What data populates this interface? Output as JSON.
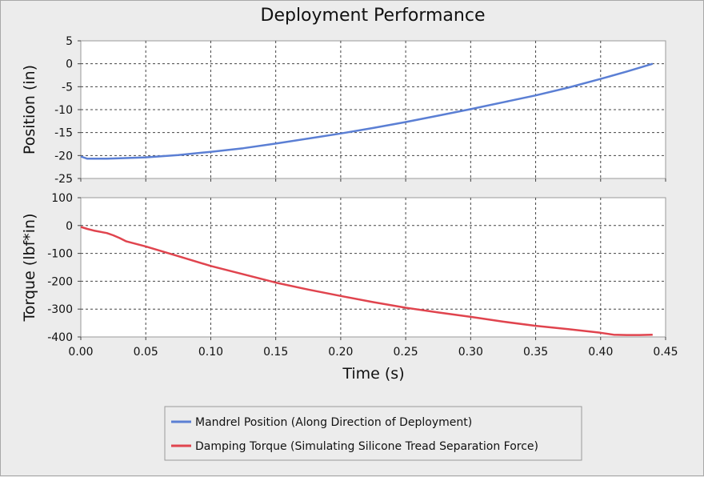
{
  "chart_data": {
    "type": "line",
    "title": "Deployment Performance",
    "xlabel": "Time (s)",
    "xlim": [
      0,
      0.45
    ],
    "x_ticks": [
      "0.00",
      "0.05",
      "0.10",
      "0.15",
      "0.20",
      "0.25",
      "0.30",
      "0.35",
      "0.40",
      "0.45"
    ],
    "grid": true,
    "legend_placement": "bottom-center",
    "panels": [
      {
        "ylabel": "Position (in)",
        "ylim": [
          -25,
          5
        ],
        "y_ticks": [
          "5",
          "0",
          "-5",
          "-10",
          "-15",
          "-20",
          "-25"
        ],
        "series": [
          {
            "name": "Mandrel Position (Along Direction of Deployment)",
            "color": "#5b7fd4",
            "x": [
              0.0,
              0.005,
              0.01,
              0.02,
              0.03,
              0.05,
              0.075,
              0.1,
              0.125,
              0.15,
              0.175,
              0.2,
              0.225,
              0.25,
              0.275,
              0.3,
              0.325,
              0.35,
              0.375,
              0.4,
              0.42,
              0.44
            ],
            "values": [
              -20.2,
              -20.7,
              -20.7,
              -20.7,
              -20.6,
              -20.4,
              -19.9,
              -19.2,
              -18.4,
              -17.4,
              -16.3,
              -15.2,
              -14.0,
              -12.7,
              -11.3,
              -9.9,
              -8.4,
              -6.9,
              -5.2,
              -3.3,
              -1.7,
              0.0
            ]
          }
        ]
      },
      {
        "ylabel": "Torque (lbf*in)",
        "ylim": [
          -400,
          100
        ],
        "y_ticks": [
          "100",
          "0",
          "-100",
          "-200",
          "-300",
          "-400"
        ],
        "series": [
          {
            "name": "Damping Torque (Simulating Silicone Tread Separation Force)",
            "color": "#e0444e",
            "x": [
              0.0,
              0.005,
              0.01,
              0.02,
              0.025,
              0.03,
              0.035,
              0.05,
              0.075,
              0.1,
              0.125,
              0.15,
              0.175,
              0.2,
              0.225,
              0.25,
              0.275,
              0.3,
              0.325,
              0.35,
              0.375,
              0.4,
              0.41,
              0.42,
              0.43,
              0.44
            ],
            "values": [
              -5,
              -12,
              -18,
              -27,
              -35,
              -45,
              -57,
              -75,
              -110,
              -145,
              -175,
              -205,
              -230,
              -253,
              -275,
              -295,
              -312,
              -328,
              -345,
              -360,
              -372,
              -385,
              -392,
              -393,
              -393,
              -392
            ]
          }
        ]
      }
    ]
  }
}
